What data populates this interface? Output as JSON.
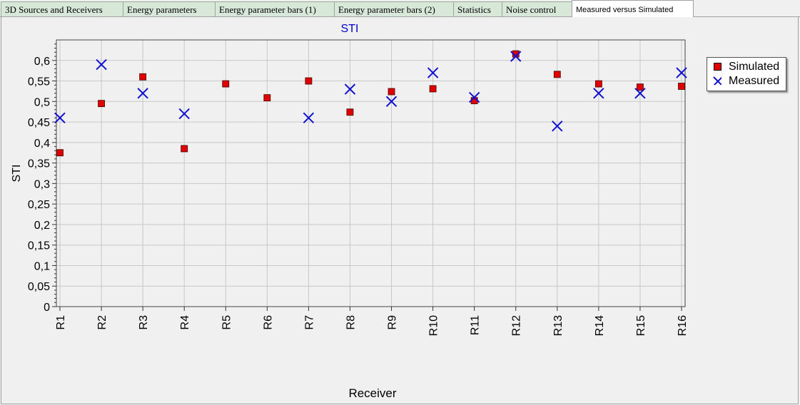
{
  "tabs": [
    {
      "label": "3D Sources and Receivers",
      "active": false
    },
    {
      "label": "Energy parameters",
      "active": false
    },
    {
      "label": "Energy parameter bars (1)",
      "active": false
    },
    {
      "label": "Energy parameter bars (2)",
      "active": false
    },
    {
      "label": "Statistics",
      "active": false
    },
    {
      "label": "Noise control",
      "active": false
    },
    {
      "label": "Measured versus Simulated",
      "active": true
    }
  ],
  "colors": {
    "simulated": "#e00000",
    "measured": "#1010d0",
    "title": "#0000cc",
    "grid": "#c8c8c8"
  },
  "chart_data": {
    "type": "scatter",
    "title": "STI",
    "xlabel": "Receiver",
    "ylabel": "STI",
    "categories": [
      "R1",
      "R2",
      "R3",
      "R4",
      "R5",
      "R6",
      "R7",
      "R8",
      "R9",
      "R10",
      "R11",
      "R12",
      "R13",
      "R14",
      "R15",
      "R16"
    ],
    "ylim": [
      0,
      0.65
    ],
    "yticks": [
      "0",
      "0,05",
      "0,1",
      "0,15",
      "0,2",
      "0,25",
      "0,3",
      "0,35",
      "0,4",
      "0,45",
      "0,5",
      "0,55",
      "0,6"
    ],
    "grid": true,
    "legend_position": "top-right",
    "series": [
      {
        "name": "Simulated",
        "marker": "square",
        "values": [
          0.375,
          0.495,
          0.56,
          0.385,
          0.543,
          0.509,
          0.55,
          0.474,
          0.524,
          0.531,
          0.502,
          0.616,
          0.566,
          0.543,
          0.535,
          0.537
        ]
      },
      {
        "name": "Measured",
        "marker": "x",
        "values": [
          0.46,
          0.59,
          0.52,
          0.47,
          null,
          null,
          0.46,
          0.53,
          0.5,
          0.57,
          0.51,
          0.61,
          0.44,
          0.52,
          0.52,
          0.57
        ]
      }
    ]
  }
}
